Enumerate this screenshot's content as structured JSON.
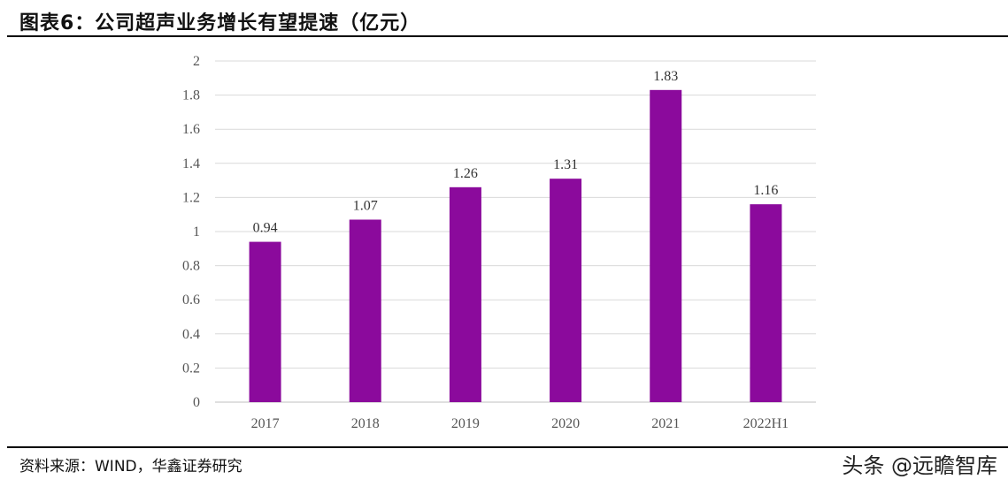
{
  "header": {
    "title": "图表6：公司超声业务增长有望提速（亿元）"
  },
  "footer": {
    "source": "资料来源：WIND，华鑫证券研究",
    "watermark": "头条 @远瞻智库"
  },
  "chart_data": {
    "type": "bar",
    "title": "图表6：公司超声业务增长有望提速（亿元）",
    "categories": [
      "2017",
      "2018",
      "2019",
      "2020",
      "2021",
      "2022H1"
    ],
    "values": [
      0.94,
      1.07,
      1.26,
      1.31,
      1.83,
      1.16
    ],
    "data_labels": [
      "0.94",
      "1.07",
      "1.26",
      "1.31",
      "1.83",
      "1.16"
    ],
    "y_ticks": [
      "0",
      "0.2",
      "0.4",
      "0.6",
      "0.8",
      "1",
      "1.2",
      "1.4",
      "1.6",
      "1.8",
      "2"
    ],
    "ylim": [
      0,
      2
    ],
    "grid": true,
    "legend": "none",
    "bar_color": "#8B0A9C",
    "grid_color": "#D9D9D9"
  }
}
